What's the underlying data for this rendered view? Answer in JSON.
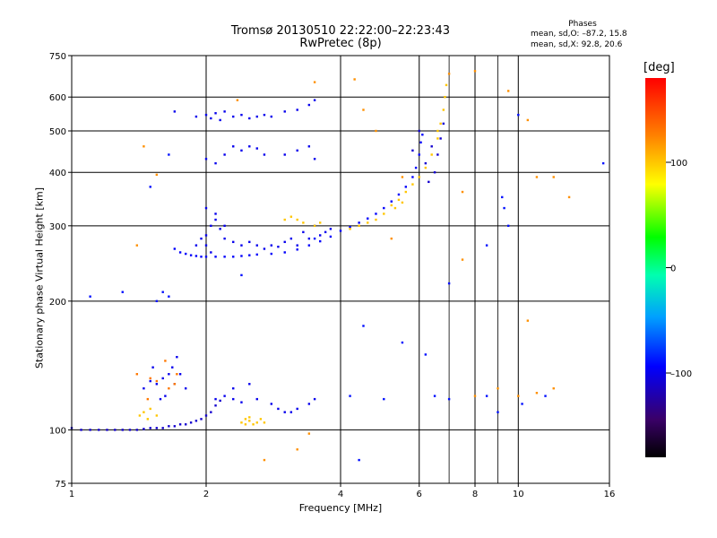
{
  "header": {
    "title_line1": "Tromsø 20130510 22:22:00–22:23:43",
    "title_line2": "RwPretec (8p)"
  },
  "phases_box": {
    "title": "Phases",
    "o_line": "mean, sd,O: –87.2, 15.8",
    "x_line": "mean, sd,X:  92.8, 20.6"
  },
  "colorbar": {
    "unit_label": "[deg]",
    "range": [
      -180,
      180
    ],
    "ticks": [
      {
        "value": 100,
        "label": "100"
      },
      {
        "value": 0,
        "label": "0"
      },
      {
        "value": -100,
        "label": "–100"
      }
    ]
  },
  "chart_data": {
    "type": "scatter",
    "xlabel": "Frequency [MHz]",
    "ylabel": "Stationary phase Virtual Height [km]",
    "x_scale": "log",
    "y_scale": "log",
    "xlim": [
      1,
      16
    ],
    "ylim": [
      75,
      750
    ],
    "x_ticks": [
      1,
      2,
      4,
      6,
      8,
      10,
      16
    ],
    "x_tick_labels": [
      "1",
      "2",
      "4",
      "6",
      "8",
      "10",
      "16"
    ],
    "x_grid": [
      2,
      4,
      6,
      8,
      10
    ],
    "x_minor_grid": [
      7,
      9
    ],
    "y_ticks": [
      75,
      100,
      200,
      300,
      400,
      500,
      600,
      750
    ],
    "y_tick_labels": [
      "75",
      "100",
      "200",
      "300",
      "400",
      "500",
      "600",
      "750"
    ],
    "y_grid": [
      100,
      200,
      300,
      400,
      500,
      600
    ],
    "grid": true,
    "color_variable": "phase [deg]",
    "series": [
      {
        "role": "E-layer trace",
        "phase": -110,
        "points": [
          [
            1.0,
            101
          ],
          [
            1.05,
            100
          ],
          [
            1.1,
            100
          ],
          [
            1.15,
            100
          ],
          [
            1.2,
            100
          ],
          [
            1.25,
            100
          ],
          [
            1.3,
            100
          ],
          [
            1.35,
            100
          ],
          [
            1.4,
            100
          ],
          [
            1.45,
            100.5
          ],
          [
            1.5,
            101
          ],
          [
            1.55,
            101
          ],
          [
            1.6,
            101
          ],
          [
            1.65,
            102
          ],
          [
            1.7,
            102
          ],
          [
            1.75,
            103
          ],
          [
            1.8,
            103
          ],
          [
            1.85,
            104
          ],
          [
            1.9,
            105
          ],
          [
            1.95,
            106
          ],
          [
            2.0,
            108
          ],
          [
            2.05,
            110
          ],
          [
            2.1,
            114
          ],
          [
            2.15,
            117
          ]
        ]
      },
      {
        "role": "E-layer yellow",
        "phase": 100,
        "points": [
          [
            1.42,
            108
          ],
          [
            1.45,
            110
          ],
          [
            1.5,
            112
          ],
          [
            1.55,
            108
          ],
          [
            1.48,
            106
          ],
          [
            2.4,
            104
          ],
          [
            2.45,
            106
          ],
          [
            2.5,
            105
          ],
          [
            2.55,
            103
          ],
          [
            2.6,
            104
          ],
          [
            2.65,
            106
          ],
          [
            2.7,
            104
          ],
          [
            2.5,
            107
          ],
          [
            2.45,
            103
          ]
        ]
      },
      {
        "role": "Es / E2 scatter",
        "phase": -100,
        "points": [
          [
            1.45,
            125
          ],
          [
            1.5,
            130
          ],
          [
            1.55,
            128
          ],
          [
            1.6,
            132
          ],
          [
            1.62,
            120
          ],
          [
            1.65,
            135
          ],
          [
            1.68,
            140
          ],
          [
            1.7,
            128
          ],
          [
            1.75,
            135
          ],
          [
            1.52,
            140
          ],
          [
            1.58,
            118
          ],
          [
            1.72,
            148
          ],
          [
            1.8,
            125
          ],
          [
            2.1,
            118
          ],
          [
            2.2,
            120
          ],
          [
            2.3,
            118
          ],
          [
            2.4,
            116
          ],
          [
            2.6,
            118
          ],
          [
            2.8,
            115
          ],
          [
            2.9,
            112
          ],
          [
            3.0,
            110
          ],
          [
            3.1,
            110
          ],
          [
            3.2,
            112
          ],
          [
            3.4,
            115
          ],
          [
            3.5,
            118
          ],
          [
            2.3,
            125
          ],
          [
            2.5,
            128
          ]
        ]
      },
      {
        "role": "Es orange",
        "phase": 130,
        "points": [
          [
            1.4,
            135
          ],
          [
            1.5,
            132
          ],
          [
            1.55,
            130
          ],
          [
            1.65,
            125
          ],
          [
            1.7,
            128
          ],
          [
            1.72,
            135
          ],
          [
            1.48,
            118
          ],
          [
            1.62,
            145
          ]
        ]
      },
      {
        "role": "F-layer O-trace",
        "phase": -95,
        "points": [
          [
            1.7,
            265
          ],
          [
            1.75,
            260
          ],
          [
            1.8,
            258
          ],
          [
            1.85,
            256
          ],
          [
            1.9,
            255
          ],
          [
            1.95,
            254
          ],
          [
            2.0,
            254
          ],
          [
            2.1,
            254
          ],
          [
            2.2,
            254
          ],
          [
            2.3,
            254
          ],
          [
            2.4,
            255
          ],
          [
            2.5,
            256
          ],
          [
            2.6,
            257
          ],
          [
            2.8,
            258
          ],
          [
            3.0,
            260
          ],
          [
            3.2,
            264
          ],
          [
            3.4,
            270
          ],
          [
            3.6,
            276
          ],
          [
            3.8,
            283
          ],
          [
            4.0,
            292
          ],
          [
            4.2,
            298
          ],
          [
            4.4,
            305
          ],
          [
            4.6,
            312
          ],
          [
            4.8,
            320
          ],
          [
            5.0,
            330
          ],
          [
            5.2,
            342
          ],
          [
            5.4,
            355
          ],
          [
            5.6,
            370
          ],
          [
            5.8,
            390
          ],
          [
            5.9,
            410
          ],
          [
            6.0,
            440
          ],
          [
            6.05,
            470
          ],
          [
            6.1,
            490
          ]
        ]
      },
      {
        "role": "F-layer spread",
        "phase": -100,
        "points": [
          [
            2.0,
            270
          ],
          [
            2.0,
            285
          ],
          [
            2.05,
            300
          ],
          [
            2.1,
            320
          ],
          [
            2.0,
            330
          ],
          [
            2.1,
            310
          ],
          [
            2.05,
            260
          ],
          [
            2.15,
            295
          ],
          [
            2.2,
            280
          ],
          [
            2.3,
            275
          ],
          [
            2.4,
            270
          ],
          [
            2.5,
            275
          ],
          [
            2.6,
            270
          ],
          [
            2.7,
            265
          ],
          [
            2.8,
            270
          ],
          [
            2.9,
            268
          ],
          [
            3.0,
            275
          ],
          [
            3.1,
            280
          ],
          [
            3.2,
            270
          ],
          [
            3.3,
            290
          ],
          [
            3.4,
            280
          ],
          [
            3.5,
            300
          ],
          [
            3.6,
            285
          ],
          [
            3.7,
            290
          ],
          [
            3.8,
            295
          ],
          [
            1.95,
            280
          ],
          [
            1.9,
            270
          ],
          [
            2.2,
            300
          ]
        ]
      },
      {
        "role": "F-layer X-trace",
        "phase": 100,
        "points": [
          [
            3.0,
            310
          ],
          [
            3.1,
            315
          ],
          [
            3.2,
            310
          ],
          [
            3.3,
            305
          ],
          [
            3.5,
            300
          ],
          [
            3.6,
            305
          ],
          [
            4.2,
            295
          ],
          [
            4.4,
            300
          ],
          [
            4.6,
            305
          ],
          [
            4.8,
            310
          ],
          [
            5.0,
            320
          ],
          [
            5.2,
            335
          ],
          [
            5.4,
            345
          ],
          [
            5.6,
            360
          ],
          [
            5.8,
            375
          ],
          [
            6.0,
            390
          ],
          [
            6.2,
            410
          ],
          [
            6.4,
            440
          ],
          [
            6.6,
            480
          ],
          [
            6.7,
            520
          ],
          [
            6.8,
            560
          ],
          [
            6.85,
            600
          ],
          [
            6.9,
            640
          ],
          [
            6.6,
            500
          ],
          [
            5.3,
            330
          ],
          [
            5.5,
            340
          ]
        ]
      },
      {
        "role": "F2 cusp blue",
        "phase": -110,
        "points": [
          [
            5.8,
            450
          ],
          [
            6.0,
            500
          ],
          [
            6.2,
            420
          ],
          [
            6.4,
            460
          ],
          [
            6.5,
            400
          ],
          [
            6.6,
            440
          ],
          [
            6.7,
            480
          ],
          [
            6.8,
            520
          ],
          [
            6.3,
            380
          ]
        ]
      },
      {
        "role": "Multi-hop echo",
        "phase": -100,
        "points": [
          [
            1.7,
            555
          ],
          [
            1.9,
            540
          ],
          [
            2.0,
            545
          ],
          [
            2.05,
            535
          ],
          [
            2.1,
            550
          ],
          [
            2.15,
            530
          ],
          [
            2.2,
            555
          ],
          [
            2.3,
            540
          ],
          [
            2.4,
            545
          ],
          [
            2.5,
            535
          ],
          [
            2.6,
            540
          ],
          [
            2.7,
            545
          ],
          [
            2.8,
            540
          ],
          [
            3.0,
            555
          ],
          [
            3.2,
            560
          ],
          [
            3.4,
            575
          ],
          [
            3.5,
            590
          ],
          [
            2.0,
            430
          ],
          [
            2.1,
            420
          ],
          [
            2.2,
            440
          ],
          [
            2.3,
            460
          ],
          [
            2.4,
            450
          ],
          [
            2.5,
            460
          ],
          [
            2.6,
            455
          ],
          [
            2.7,
            440
          ],
          [
            3.0,
            440
          ],
          [
            3.2,
            450
          ],
          [
            3.4,
            460
          ],
          [
            3.5,
            430
          ]
        ]
      },
      {
        "role": "Scattered noise",
        "phase": 120,
        "points": [
          [
            1.45,
            460
          ],
          [
            1.55,
            395
          ],
          [
            1.4,
            270
          ],
          [
            2.35,
            590
          ],
          [
            3.5,
            650
          ],
          [
            4.3,
            660
          ],
          [
            4.5,
            560
          ],
          [
            4.8,
            500
          ],
          [
            5.2,
            280
          ],
          [
            5.5,
            390
          ],
          [
            7.0,
            680
          ],
          [
            7.5,
            360
          ],
          [
            8.0,
            690
          ],
          [
            9.5,
            620
          ],
          [
            10.5,
            530
          ],
          [
            11.0,
            390
          ],
          [
            12.0,
            390
          ],
          [
            13.0,
            350
          ],
          [
            10.5,
            180
          ],
          [
            7.5,
            250
          ],
          [
            8.0,
            120
          ],
          [
            9.0,
            125
          ],
          [
            10.0,
            120
          ],
          [
            11.0,
            122
          ],
          [
            12.0,
            125
          ],
          [
            3.2,
            90
          ],
          [
            2.7,
            85
          ],
          [
            3.4,
            98
          ]
        ]
      },
      {
        "role": "Scattered blue",
        "phase": -90,
        "points": [
          [
            1.1,
            205
          ],
          [
            1.6,
            210
          ],
          [
            1.65,
            205
          ],
          [
            1.55,
            200
          ],
          [
            2.4,
            230
          ],
          [
            3.5,
            280
          ],
          [
            7.0,
            220
          ],
          [
            8.5,
            120
          ],
          [
            9.0,
            110
          ],
          [
            10.2,
            115
          ],
          [
            11.5,
            120
          ],
          [
            4.5,
            175
          ],
          [
            5.5,
            160
          ],
          [
            6.2,
            150
          ],
          [
            4.2,
            120
          ],
          [
            5.0,
            118
          ],
          [
            6.5,
            120
          ],
          [
            7.0,
            118
          ],
          [
            4.4,
            85
          ],
          [
            1.5,
            370
          ],
          [
            1.65,
            440
          ],
          [
            10.0,
            545
          ],
          [
            15.5,
            420
          ],
          [
            9.5,
            300
          ],
          [
            8.5,
            270
          ],
          [
            1.3,
            210
          ],
          [
            9.2,
            350
          ],
          [
            9.3,
            330
          ]
        ]
      }
    ]
  }
}
